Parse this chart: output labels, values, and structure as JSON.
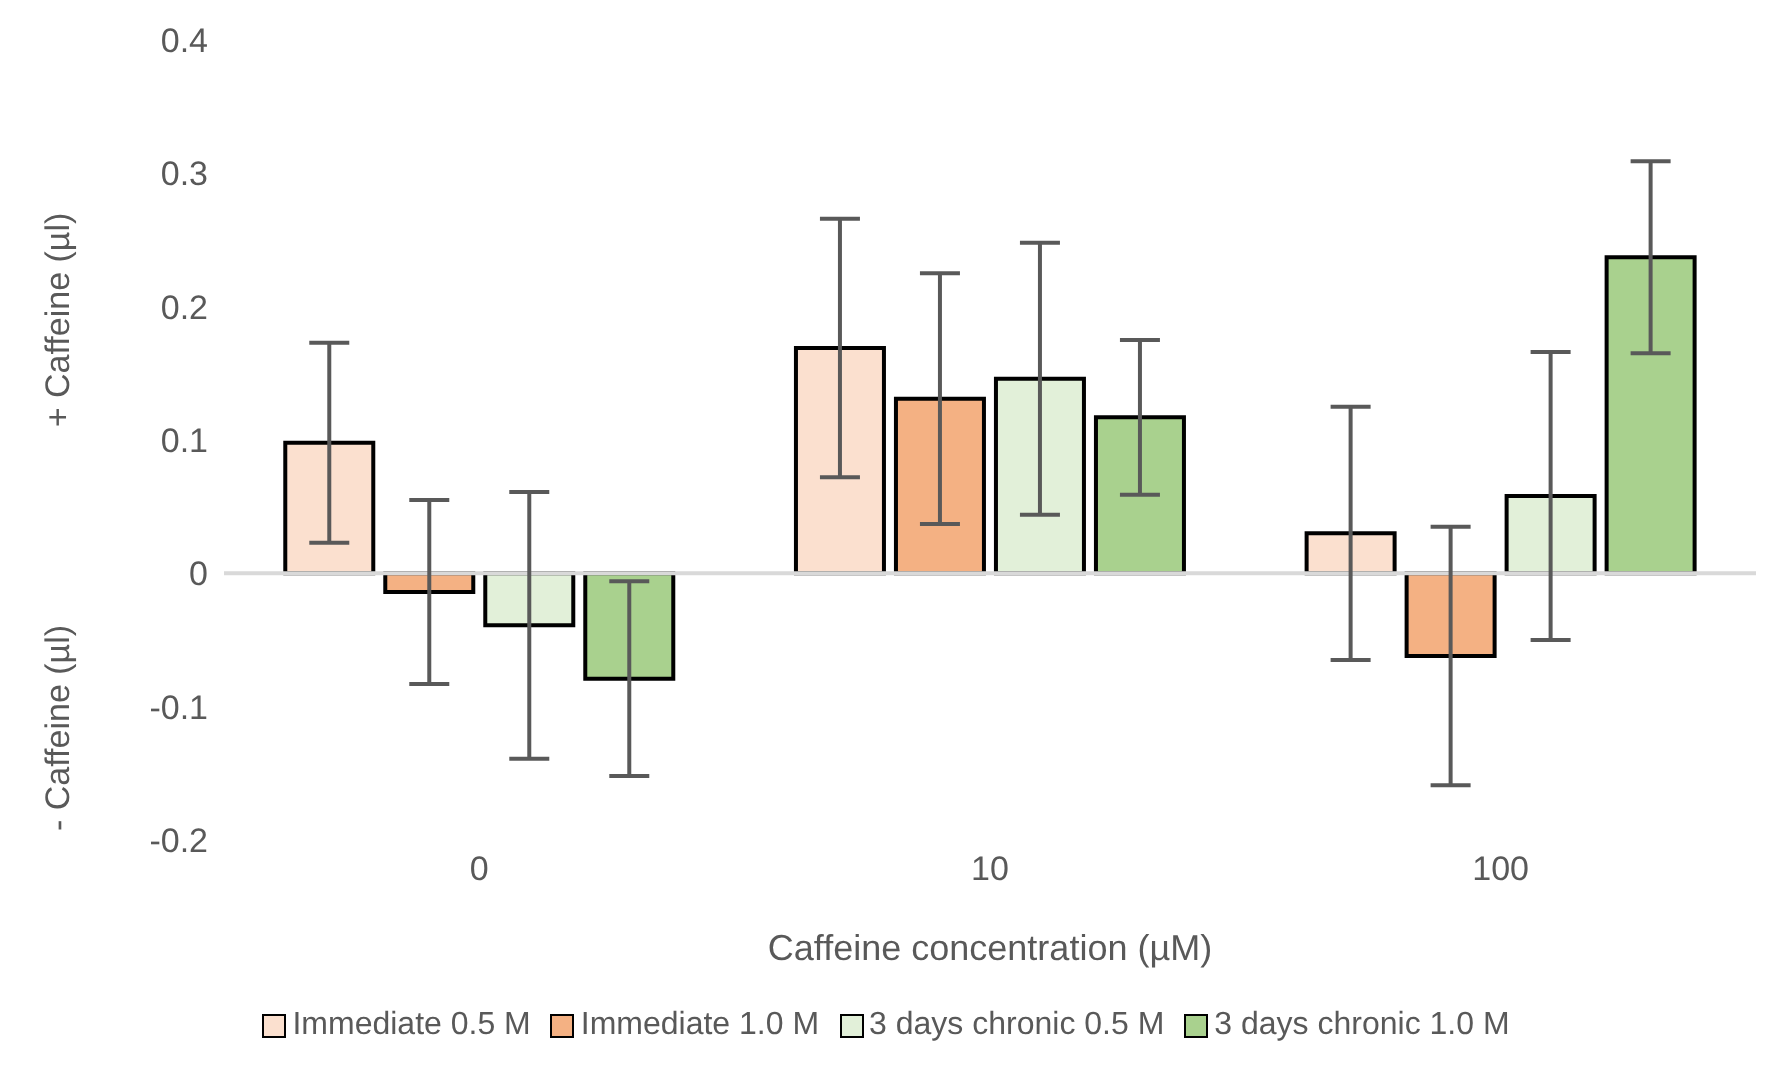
{
  "chart_data": {
    "type": "bar",
    "xlabel": "Caffeine concentration (µM)",
    "ylabel": "+ Caffeine (µl)",
    "annotations": [
      "- Caffeine (µl)"
    ],
    "categories": [
      "0",
      "10",
      "100"
    ],
    "series": [
      {
        "name": "Immediate 0.5 M",
        "color": "#fbe0cf",
        "values": [
          0.098,
          0.169,
          0.03
        ],
        "errors": [
          0.075,
          0.097,
          0.095
        ]
      },
      {
        "name": "Immediate 1.0 M",
        "color": "#f4b183",
        "values": [
          -0.014,
          0.131,
          -0.062
        ],
        "errors": [
          0.069,
          0.094,
          0.097
        ]
      },
      {
        "name": "3 days chronic 0.5 M",
        "color": "#e2f0d9",
        "values": [
          -0.039,
          0.146,
          0.058
        ],
        "errors": [
          0.1,
          0.102,
          0.108
        ]
      },
      {
        "name": "3 days chronic 1.0 M",
        "color": "#a9d18e",
        "values": [
          -0.079,
          0.117,
          0.237
        ],
        "errors": [
          0.073,
          0.058,
          0.072
        ]
      }
    ],
    "ylim": [
      -0.2,
      0.4
    ],
    "yticks": [
      -0.2,
      -0.1,
      0,
      0.1,
      0.2,
      0.3,
      0.4
    ],
    "legend": "bottom"
  }
}
